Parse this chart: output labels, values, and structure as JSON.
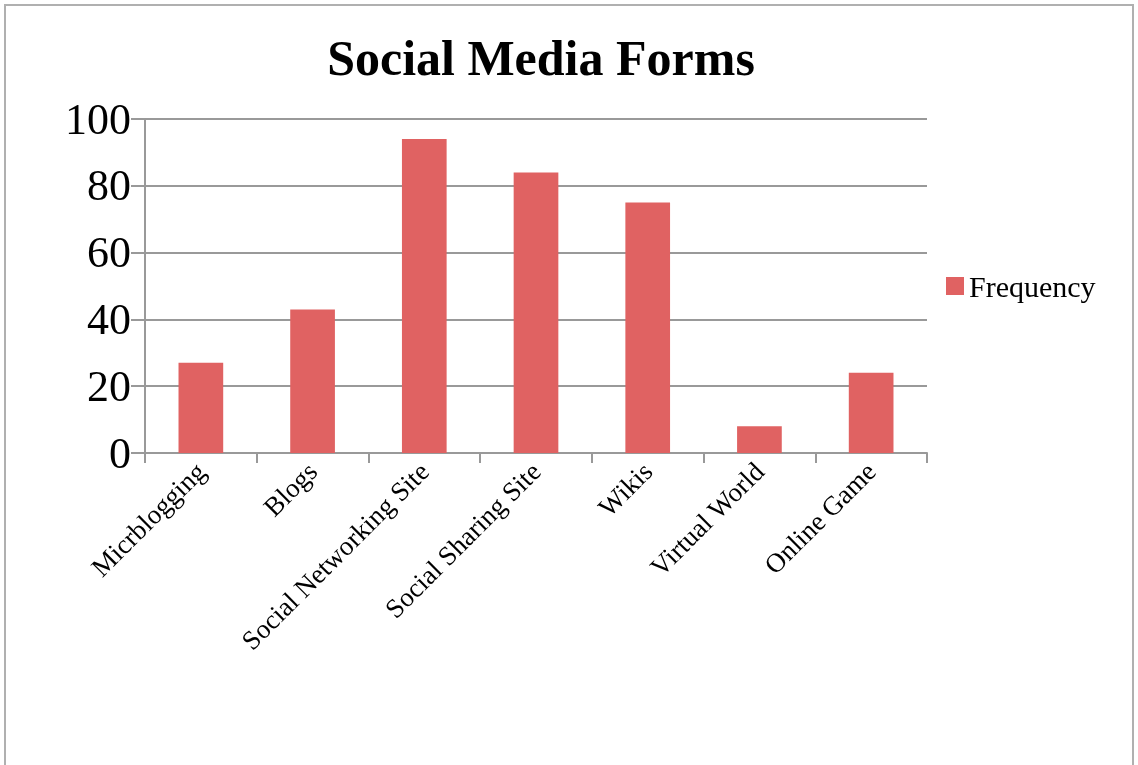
{
  "chart_data": {
    "type": "bar",
    "title": "Social Media Forms",
    "categories": [
      "Micrblogging",
      "Blogs",
      "Social Networking Site",
      "Social Sharing Site",
      "Wikis",
      "Virtual World",
      "Online Game"
    ],
    "series": [
      {
        "name": "Frequency",
        "color": "#e06262",
        "values": [
          27,
          43,
          94,
          84,
          75,
          8,
          24
        ]
      }
    ],
    "ylim": [
      0,
      100
    ],
    "yticks": [
      0,
      20,
      40,
      60,
      80,
      100
    ],
    "grid": "y",
    "legend": "right"
  }
}
